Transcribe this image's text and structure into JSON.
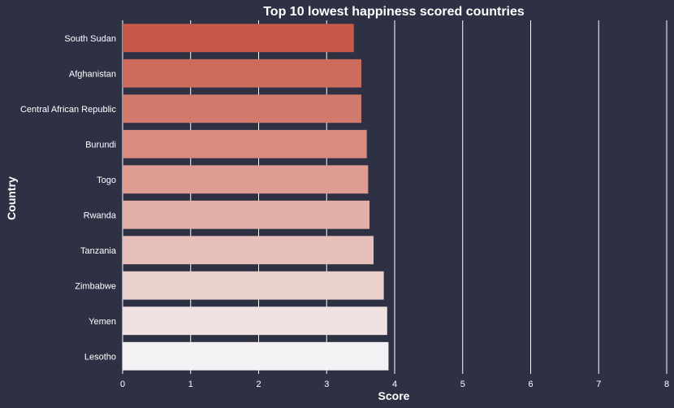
{
  "chart_data": {
    "type": "bar",
    "orientation": "horizontal",
    "title": "Top 10 lowest happiness scored countries",
    "xlabel": "Score",
    "ylabel": "Country",
    "xlim": [
      0,
      8
    ],
    "xticks": [
      "0",
      "1",
      "2",
      "3",
      "4",
      "5",
      "6",
      "7",
      "8"
    ],
    "categories": [
      "South Sudan",
      "Afghanistan",
      "Central African Republic",
      "Burundi",
      "Togo",
      "Rwanda",
      "Tanzania",
      "Zimbabwe",
      "Yemen",
      "Lesotho"
    ],
    "values": [
      3.4,
      3.51,
      3.51,
      3.59,
      3.61,
      3.63,
      3.69,
      3.84,
      3.89,
      3.91
    ],
    "grid": "vertical",
    "colors": [
      "#c6594a",
      "#cd6b5d",
      "#d27a6e",
      "#d98b80",
      "#de9c93",
      "#e2aea7",
      "#e7c0bb",
      "#ebd1ce",
      "#efe2e1",
      "#f3f1f3"
    ],
    "background": "#2e3144"
  }
}
